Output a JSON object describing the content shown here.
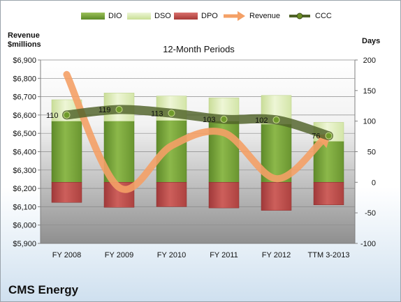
{
  "chart_data": {
    "type": "bar",
    "title": "12-Month Periods",
    "company": "CMS Energy",
    "left_axis_label": "Revenue\n$millions",
    "right_axis_label": "Days",
    "categories": [
      "FY 2008",
      "FY 2009",
      "FY 2010",
      "FY 2011",
      "FY 2012",
      "TTM 3-2013"
    ],
    "left_axis": {
      "min": 5900,
      "max": 6900,
      "step": 100,
      "ticks": [
        "$6,900",
        "$6,800",
        "$6,700",
        "$6,600",
        "$6,500",
        "$6,400",
        "$6,300",
        "$6,200",
        "$6,100",
        "$6,000",
        "$5,900"
      ]
    },
    "right_axis": {
      "min": -100,
      "max": 200,
      "step": 50,
      "ticks": [
        "200",
        "150",
        "100",
        "50",
        "0",
        "-50",
        "-100"
      ]
    },
    "series": [
      {
        "name": "DIO",
        "axis": "right",
        "values": [
          100,
          100,
          101,
          100,
          95,
          67
        ],
        "color": "#77a33a"
      },
      {
        "name": "DSO",
        "axis": "right",
        "values": [
          35,
          46,
          40,
          38,
          47,
          31
        ],
        "color": "#d9eab2"
      },
      {
        "name": "DPO",
        "axis": "right",
        "values": [
          -33,
          -41,
          -40,
          -42,
          -46,
          -37
        ],
        "color": "#c0504d"
      },
      {
        "name": "Revenue",
        "axis": "left",
        "values": [
          6821,
          6205,
          6432,
          6503,
          6253,
          6489
        ],
        "color": "#f79646"
      },
      {
        "name": "CCC",
        "axis": "right",
        "values": [
          110,
          119,
          113,
          103,
          102,
          76
        ],
        "color": "#4f6228"
      }
    ],
    "ccc_labels": [
      "110",
      "119",
      "113",
      "103",
      "102",
      "76"
    ],
    "grid": true,
    "legend_position": "top"
  }
}
